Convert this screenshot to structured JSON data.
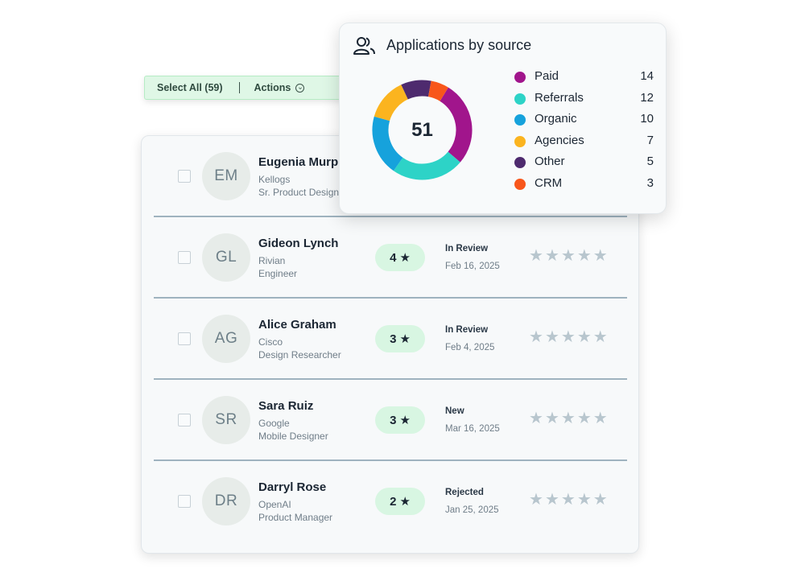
{
  "toolbar": {
    "select_all_label": "Select All (59)",
    "actions_label": "Actions"
  },
  "applicants": [
    {
      "initials": "EM",
      "name": "Eugenia Murph",
      "company": "Kellogs",
      "role": "Sr. Product Designe",
      "score": "",
      "status": "",
      "date": "",
      "rating": 0
    },
    {
      "initials": "GL",
      "name": "Gideon Lynch",
      "company": "Rivian",
      "role": "Engineer",
      "score": "4",
      "status": "In Review",
      "date": "Feb 16, 2025",
      "rating": 0
    },
    {
      "initials": "AG",
      "name": "Alice Graham",
      "company": "Cisco",
      "role": "Design Researcher",
      "score": "3",
      "status": "In Review",
      "date": "Feb 4, 2025",
      "rating": 0
    },
    {
      "initials": "SR",
      "name": "Sara Ruiz",
      "company": "Google",
      "role": "Mobile Designer",
      "score": "3",
      "status": "New",
      "date": "Mar 16, 2025",
      "rating": 0
    },
    {
      "initials": "DR",
      "name": "Darryl Rose",
      "company": "OpenAI",
      "role": "Product Manager",
      "score": "2",
      "status": "Rejected",
      "date": "Jan 25, 2025",
      "rating": 0
    }
  ],
  "sources_card": {
    "title": "Applications by source",
    "icon": "users-icon",
    "total": "51",
    "chart_data": {
      "type": "pie",
      "categories": [
        "Paid",
        "Referrals",
        "Organic",
        "Agencies",
        "Other",
        "CRM"
      ],
      "values": [
        14,
        12,
        10,
        7,
        5,
        3
      ],
      "colors": [
        "#a1158c",
        "#2dd3c7",
        "#16a2dc",
        "#fbb41f",
        "#4e2a6e",
        "#f8561b"
      ]
    }
  }
}
